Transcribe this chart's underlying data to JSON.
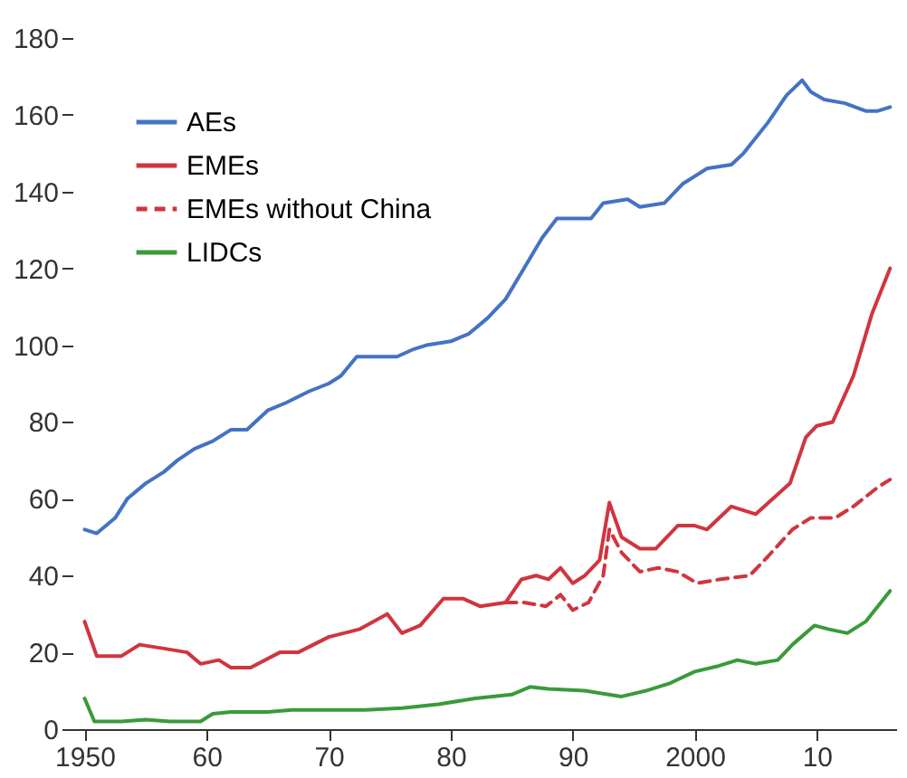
{
  "chart_data": {
    "type": "line",
    "xlim": [
      1949,
      2016.5
    ],
    "xticks": [
      1950,
      {
        "value": 1960,
        "label": "60"
      },
      {
        "value": 1970,
        "label": "70"
      },
      {
        "value": 1980,
        "label": "80"
      },
      {
        "value": 1990,
        "label": "90"
      },
      2000,
      {
        "value": 2010,
        "label": "10"
      }
    ],
    "ylim": [
      0,
      180
    ],
    "yticks": [
      0,
      20,
      40,
      60,
      80,
      100,
      120,
      140,
      160,
      180
    ],
    "grid": false,
    "legend": "top left",
    "series": [
      {
        "name": "AEs",
        "color": "#4472c4",
        "line_style": "solid",
        "x": [
          1950,
          1951,
          1952.5,
          1953.5,
          1955,
          1956.5,
          1957.6,
          1959,
          1960.5,
          1962,
          1963.3,
          1965,
          1966.5,
          1968.4,
          1970,
          1971,
          1972.3,
          1974,
          1975.6,
          1977,
          1978,
          1980,
          1981.5,
          1983,
          1984.5,
          1986,
          1987.5,
          1988.7,
          1991.5,
          1992.5,
          1994.5,
          1995.5,
          1997.5,
          1999,
          2001,
          2003,
          2004,
          2006,
          2007.5,
          2008.8,
          2009.5,
          2010.6,
          2012.3,
          2014,
          2015,
          2016
        ],
        "values": [
          52,
          51,
          55,
          60,
          64,
          67,
          70,
          73,
          75,
          78,
          78,
          83,
          85,
          88,
          90,
          92,
          97,
          97,
          97,
          99,
          100,
          101,
          103,
          107,
          112,
          120,
          128,
          133,
          133,
          137,
          138,
          136,
          137,
          142,
          146,
          147,
          150,
          158,
          165,
          169,
          166,
          164,
          163,
          161,
          161,
          162
        ]
      },
      {
        "name": "EMEs",
        "color": "#d0353f",
        "line_style": "solid",
        "x": [
          1950,
          1951,
          1953,
          1954.5,
          1956.5,
          1958.4,
          1959.5,
          1961,
          1962,
          1963.6,
          1966,
          1967.5,
          1970,
          1972.5,
          1974.8,
          1976,
          1977.5,
          1979.4,
          1981,
          1982.4,
          1984.5,
          1985.8,
          1987,
          1988,
          1989,
          1990,
          1991,
          1992.2,
          1993,
          1994,
          1995.5,
          1996.8,
          1998.6,
          2000,
          2001,
          2003,
          2005,
          2007.8,
          2009.1,
          2010,
          2011.3,
          2013,
          2014.5,
          2016
        ],
        "values": [
          28,
          19,
          19,
          22,
          21,
          20,
          17,
          18,
          16,
          16,
          20,
          20,
          24,
          26,
          30,
          25,
          27,
          34,
          34,
          32,
          33,
          39,
          40,
          39,
          42,
          38,
          40,
          44,
          59,
          50,
          47,
          47,
          53,
          53,
          52,
          58,
          56,
          64,
          76,
          79,
          80,
          92,
          108,
          120
        ]
      },
      {
        "name": "EMEs without China",
        "color": "#d0353f",
        "line_style": "dashed",
        "x": [
          1984.5,
          1986,
          1987.8,
          1989,
          1990,
          1991.3,
          1992.5,
          1993,
          1994,
          1995.5,
          1997,
          1998.6,
          2000.2,
          2002,
          2004.5,
          2006,
          2008,
          2009.5,
          2011.5,
          2013,
          2015,
          2016
        ],
        "values": [
          33,
          33,
          32,
          35,
          31,
          33,
          40,
          52,
          46,
          41,
          42,
          41,
          38,
          39,
          40,
          45,
          52,
          55,
          55,
          58,
          63,
          65
        ]
      },
      {
        "name": "LIDCs",
        "color": "#3a9a3a",
        "line_style": "solid",
        "x": [
          1950,
          1950.8,
          1953,
          1955,
          1957,
          1959.5,
          1960.5,
          1962,
          1965,
          1967,
          1970,
          1973,
          1976,
          1979,
          1982,
          1985,
          1986.5,
          1988,
          1991,
          1994,
          1996,
          1998,
          2000,
          2002,
          2003.5,
          2005,
          2006.8,
          2008,
          2009.8,
          2011,
          2012.5,
          2014,
          2016
        ],
        "values": [
          8,
          2,
          2,
          2.5,
          2,
          2,
          4,
          4.5,
          4.5,
          5,
          5,
          5,
          5.5,
          6.5,
          8,
          9,
          11,
          10.5,
          10,
          8.5,
          10,
          12,
          15,
          16.5,
          18,
          17,
          18,
          22,
          27,
          26,
          25,
          28,
          36
        ]
      }
    ]
  }
}
